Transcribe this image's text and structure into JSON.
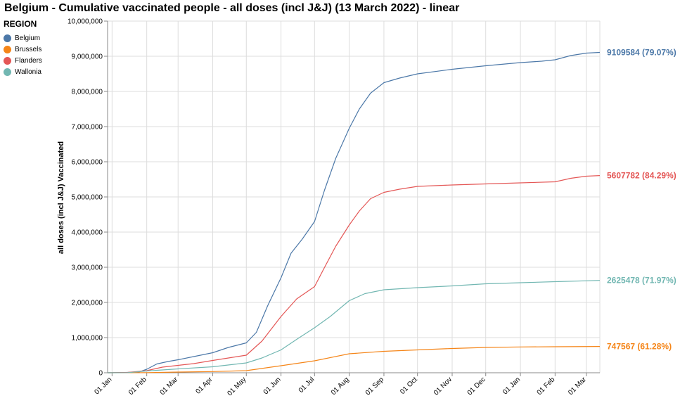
{
  "chart_data": {
    "type": "line",
    "title": "Belgium - Cumulative vaccinated people - all doses (incl J&J) (13 March 2022) - linear",
    "xlabel": "",
    "ylabel": "all doses (incl J&J) Vaccinated",
    "ylim": [
      0,
      10000000
    ],
    "yticks": [
      "0",
      "1,000,000",
      "2,000,000",
      "3,000,000",
      "4,000,000",
      "5,000,000",
      "6,000,000",
      "7,000,000",
      "8,000,000",
      "9,000,000",
      "10,000,000"
    ],
    "xticks": [
      "01 Jan",
      "01 Feb",
      "01 Mar",
      "01 Apr",
      "01 May",
      "01 Jun",
      "01 Jul",
      "01 Aug",
      "01 Sep",
      "01 Oct",
      "01 Nov",
      "01 Dec",
      "01 Jan",
      "01 Feb",
      "01 Mar"
    ],
    "xtick_dates": [
      "2021-01-01",
      "2021-02-01",
      "2021-03-01",
      "2021-04-01",
      "2021-05-01",
      "2021-06-01",
      "2021-07-01",
      "2021-08-01",
      "2021-09-01",
      "2021-10-01",
      "2021-11-01",
      "2021-12-01",
      "2022-01-01",
      "2022-02-01",
      "2022-03-01"
    ],
    "x_range": [
      "2020-12-28",
      "2022-03-13"
    ],
    "grid": true,
    "legend": {
      "title": "REGION",
      "position": "top-left"
    },
    "series": [
      {
        "name": "Belgium",
        "color": "#4c78a8",
        "end_label": "9109584 (79.07%)",
        "x": [
          "2020-12-28",
          "2021-01-15",
          "2021-01-25",
          "2021-02-01",
          "2021-02-10",
          "2021-02-20",
          "2021-03-01",
          "2021-03-15",
          "2021-04-01",
          "2021-04-15",
          "2021-05-01",
          "2021-05-10",
          "2021-05-20",
          "2021-06-01",
          "2021-06-10",
          "2021-06-20",
          "2021-07-01",
          "2021-07-10",
          "2021-07-20",
          "2021-08-01",
          "2021-08-10",
          "2021-08-20",
          "2021-09-01",
          "2021-09-15",
          "2021-10-01",
          "2021-11-01",
          "2021-12-01",
          "2022-01-01",
          "2022-01-20",
          "2022-02-01",
          "2022-02-15",
          "2022-03-01",
          "2022-03-13"
        ],
        "y": [
          0,
          10000,
          20000,
          100000,
          250000,
          320000,
          370000,
          460000,
          570000,
          720000,
          850000,
          1150000,
          1900000,
          2700000,
          3400000,
          3800000,
          4300000,
          5200000,
          6100000,
          6950000,
          7500000,
          7950000,
          8250000,
          8380000,
          8500000,
          8630000,
          8730000,
          8820000,
          8860000,
          8900000,
          9020000,
          9090000,
          9109584
        ]
      },
      {
        "name": "Brussels",
        "color": "#f58518",
        "end_label": "747567 (61.28%)",
        "x": [
          "2020-12-28",
          "2021-02-01",
          "2021-03-01",
          "2021-04-01",
          "2021-05-01",
          "2021-06-01",
          "2021-07-01",
          "2021-08-01",
          "2021-09-01",
          "2021-10-01",
          "2021-11-01",
          "2021-12-01",
          "2022-01-01",
          "2022-02-01",
          "2022-03-13"
        ],
        "y": [
          0,
          5000,
          20000,
          35000,
          60000,
          200000,
          340000,
          540000,
          610000,
          650000,
          690000,
          720000,
          735000,
          740000,
          747567
        ]
      },
      {
        "name": "Flanders",
        "color": "#e45756",
        "end_label": "5607782 (84.29%)",
        "x": [
          "2020-12-28",
          "2021-01-15",
          "2021-02-01",
          "2021-02-15",
          "2021-03-01",
          "2021-03-15",
          "2021-04-01",
          "2021-04-15",
          "2021-05-01",
          "2021-05-15",
          "2021-06-01",
          "2021-06-15",
          "2021-07-01",
          "2021-07-10",
          "2021-07-20",
          "2021-08-01",
          "2021-08-10",
          "2021-08-20",
          "2021-09-01",
          "2021-09-15",
          "2021-10-01",
          "2021-11-01",
          "2021-12-01",
          "2022-01-01",
          "2022-02-01",
          "2022-02-15",
          "2022-03-01",
          "2022-03-13"
        ],
        "y": [
          0,
          10000,
          60000,
          160000,
          210000,
          260000,
          350000,
          420000,
          500000,
          900000,
          1600000,
          2100000,
          2450000,
          3000000,
          3600000,
          4200000,
          4600000,
          4950000,
          5130000,
          5220000,
          5300000,
          5340000,
          5370000,
          5400000,
          5430000,
          5530000,
          5590000,
          5607782
        ]
      },
      {
        "name": "Wallonia",
        "color": "#72b7b2",
        "end_label": "2625478 (71.97%)",
        "x": [
          "2020-12-28",
          "2021-01-15",
          "2021-02-01",
          "2021-03-01",
          "2021-04-01",
          "2021-05-01",
          "2021-05-15",
          "2021-06-01",
          "2021-06-15",
          "2021-07-01",
          "2021-07-15",
          "2021-08-01",
          "2021-08-15",
          "2021-09-01",
          "2021-10-01",
          "2021-11-01",
          "2021-12-01",
          "2022-01-01",
          "2022-02-01",
          "2022-03-13"
        ],
        "y": [
          0,
          5000,
          50000,
          110000,
          170000,
          280000,
          420000,
          650000,
          950000,
          1280000,
          1600000,
          2050000,
          2250000,
          2360000,
          2420000,
          2470000,
          2530000,
          2560000,
          2590000,
          2625478
        ]
      }
    ]
  }
}
